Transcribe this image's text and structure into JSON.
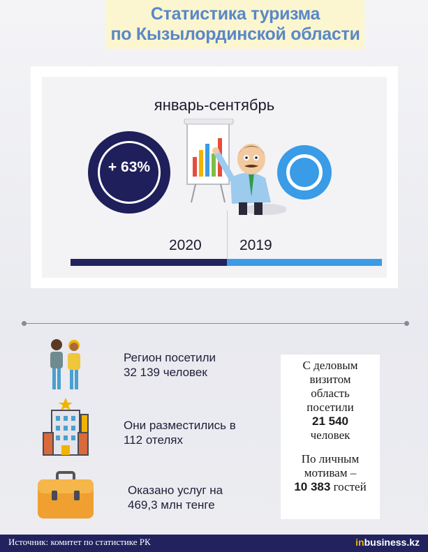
{
  "title": {
    "line1": "Статистика туризма",
    "line2": "по Кызылординской области"
  },
  "period": "январь-сентябрь",
  "growth_label": "+ 63%",
  "years": {
    "current": "2020",
    "previous": "2019"
  },
  "stats": [
    {
      "line1": "Регион посетили",
      "line2": "32 139 человек",
      "icon": "people-icon"
    },
    {
      "line1": "Они разместились в",
      "line2": "112 отелях",
      "icon": "hotel-icon"
    },
    {
      "line1": "Оказано услуг на",
      "line2": "469,3 млн тенге",
      "icon": "briefcase-icon"
    }
  ],
  "side": {
    "business_l1": "С деловым",
    "business_l2": "визитом",
    "business_l3": "область",
    "business_l4": "посетили",
    "business_num": "21 540",
    "business_l5": "человек",
    "personal_l1": "По личным",
    "personal_l2": "мотивам –",
    "personal_num": "10 383",
    "personal_l3": "гостей"
  },
  "footer": {
    "source": "Источник: комитет по статистике РК",
    "brand_in": "in",
    "brand_rest": "business.kz"
  },
  "colors": {
    "navy": "#22225e",
    "blue": "#3a9be6",
    "title": "#5a87c8",
    "title_bg": "#fbf6cf"
  }
}
